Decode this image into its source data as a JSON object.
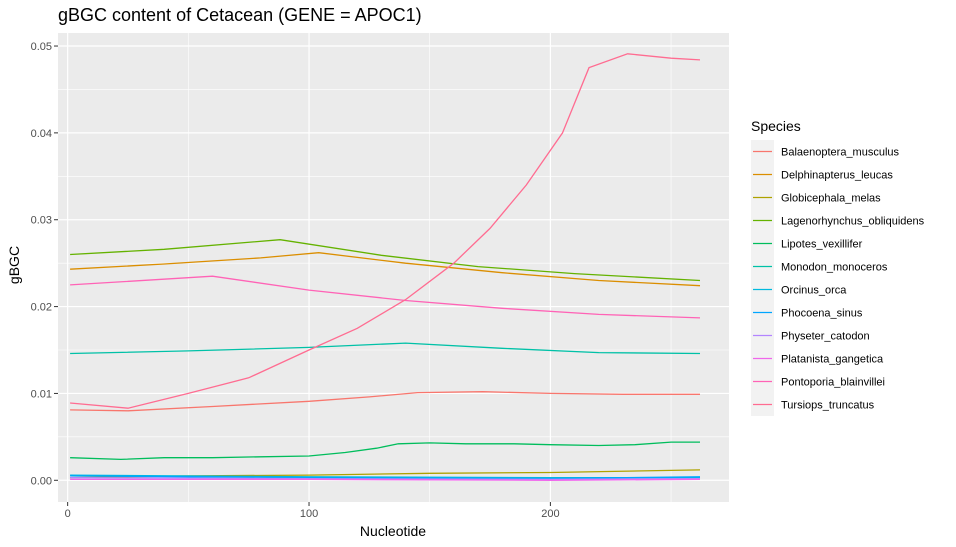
{
  "chart_data": {
    "type": "line",
    "title": "gBGC content of Cetacean (GENE = APOC1)",
    "xlabel": "Nucleotide",
    "ylabel": "gBGC",
    "xlim": [
      -4,
      274
    ],
    "ylim": [
      -0.0025,
      0.0515
    ],
    "x_ticks": [
      0,
      100,
      200
    ],
    "x_tick_labels": [
      "0",
      "100",
      "200"
    ],
    "y_ticks": [
      0.0,
      0.01,
      0.02,
      0.03,
      0.04,
      0.05
    ],
    "y_tick_labels": [
      "0.00",
      "0.01",
      "0.02",
      "0.03",
      "0.04",
      "0.05"
    ],
    "grid": true,
    "legend_title": "Species",
    "legend_position": "right",
    "series": [
      {
        "name": "Balaenoptera_musculus",
        "color": "#F8766D",
        "x": [
          1,
          25,
          60,
          100,
          125,
          145,
          172,
          200,
          230,
          262
        ],
        "y": [
          0.0081,
          0.008,
          0.0085,
          0.0091,
          0.0096,
          0.0101,
          0.0102,
          0.01,
          0.0099,
          0.0099
        ]
      },
      {
        "name": "Delphinapterus_leucas",
        "color": "#DB8E00",
        "x": [
          1,
          40,
          80,
          104,
          140,
          180,
          220,
          262
        ],
        "y": [
          0.0243,
          0.0249,
          0.0256,
          0.0262,
          0.025,
          0.0239,
          0.023,
          0.0224
        ]
      },
      {
        "name": "Globicephala_melas",
        "color": "#AEA200",
        "x": [
          1,
          50,
          100,
          150,
          200,
          262
        ],
        "y": [
          0.0003,
          0.0005,
          0.0006,
          0.0008,
          0.0009,
          0.0012
        ]
      },
      {
        "name": "Lagenorhynchus_obliquidens",
        "color": "#64B200",
        "x": [
          1,
          40,
          88,
          130,
          170,
          210,
          262
        ],
        "y": [
          0.026,
          0.0266,
          0.0277,
          0.0259,
          0.0246,
          0.0238,
          0.023
        ]
      },
      {
        "name": "Lipotes_vexillifer",
        "color": "#00BD5C",
        "x": [
          1,
          22,
          40,
          60,
          80,
          100,
          115,
          128,
          137,
          150,
          165,
          175,
          185,
          200,
          220,
          235,
          250,
          262
        ],
        "y": [
          0.0026,
          0.0024,
          0.0026,
          0.0026,
          0.0027,
          0.0028,
          0.0032,
          0.0037,
          0.0042,
          0.0043,
          0.0042,
          0.0042,
          0.0042,
          0.0041,
          0.004,
          0.0041,
          0.0044,
          0.0044
        ]
      },
      {
        "name": "Monodon_monoceros",
        "color": "#00C1A7",
        "x": [
          1,
          50,
          100,
          140,
          180,
          220,
          262
        ],
        "y": [
          0.0146,
          0.0149,
          0.0153,
          0.0158,
          0.0152,
          0.0147,
          0.0146
        ]
      },
      {
        "name": "Orcinus_orca",
        "color": "#00BADE",
        "x": [
          1,
          100,
          200,
          262
        ],
        "y": [
          0.0006,
          0.0004,
          0.0003,
          0.0003
        ]
      },
      {
        "name": "Phocoena_sinus",
        "color": "#00A6FF",
        "x": [
          1,
          100,
          200,
          262
        ],
        "y": [
          0.0005,
          0.0003,
          0.0002,
          0.0004
        ]
      },
      {
        "name": "Physeter_catodon",
        "color": "#B385FF",
        "x": [
          1,
          100,
          200,
          262
        ],
        "y": [
          0.0003,
          0.0002,
          0.0001,
          0.0002
        ]
      },
      {
        "name": "Platanista_gangetica",
        "color": "#EF67EB",
        "x": [
          1,
          100,
          200,
          262
        ],
        "y": [
          0.0001,
          0.0001,
          0.0,
          0.0001
        ]
      },
      {
        "name": "Pontoporia_blainvillei",
        "color": "#FF63B6",
        "x": [
          1,
          60,
          100,
          140,
          180,
          220,
          262
        ],
        "y": [
          0.0225,
          0.0235,
          0.0219,
          0.0207,
          0.0198,
          0.0191,
          0.0187
        ]
      },
      {
        "name": "Tursiops_truncatus",
        "color": "#FF6C91",
        "x": [
          1,
          25,
          50,
          75,
          100,
          120,
          140,
          160,
          175,
          190,
          205,
          216,
          232,
          250,
          262
        ],
        "y": [
          0.0089,
          0.0083,
          0.01,
          0.0118,
          0.015,
          0.0175,
          0.0208,
          0.025,
          0.029,
          0.034,
          0.04,
          0.0475,
          0.0491,
          0.0486,
          0.0484
        ]
      }
    ]
  }
}
